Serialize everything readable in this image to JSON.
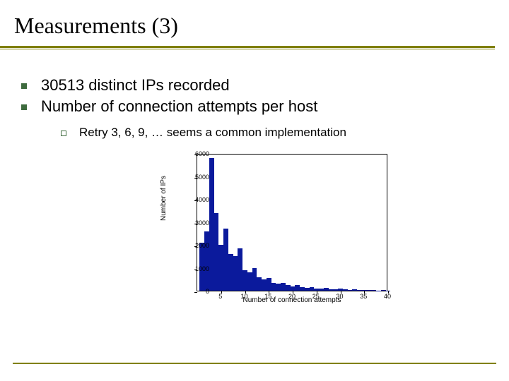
{
  "title": "Measurements (3)",
  "bullets": [
    "30513 distinct IPs recorded",
    "Number of connection attempts per host"
  ],
  "sub_bullet": "Retry 3, 6, 9, … seems a common implementation",
  "chart": {
    "type": "histogram",
    "xlabel": "Number of connection attempts",
    "ylabel": "Number of IPs",
    "xlim": [
      0,
      40
    ],
    "ylim": [
      0,
      6000
    ],
    "yticks": [
      0,
      1000,
      2000,
      3000,
      4000,
      5000,
      6000
    ],
    "xticks": [
      5,
      10,
      15,
      20,
      25,
      30,
      35,
      40
    ],
    "bar_color": "#0b1a9c",
    "background_color": "#ffffff",
    "axis_color": "#000000",
    "label_fontsize": 10,
    "tick_fontsize": 9,
    "bars": [
      {
        "x": 1,
        "y": 2100
      },
      {
        "x": 2,
        "y": 2600
      },
      {
        "x": 3,
        "y": 5800
      },
      {
        "x": 4,
        "y": 3400
      },
      {
        "x": 5,
        "y": 2000
      },
      {
        "x": 6,
        "y": 2700
      },
      {
        "x": 7,
        "y": 1600
      },
      {
        "x": 8,
        "y": 1500
      },
      {
        "x": 9,
        "y": 1850
      },
      {
        "x": 10,
        "y": 900
      },
      {
        "x": 11,
        "y": 800
      },
      {
        "x": 12,
        "y": 1000
      },
      {
        "x": 13,
        "y": 600
      },
      {
        "x": 14,
        "y": 500
      },
      {
        "x": 15,
        "y": 550
      },
      {
        "x": 16,
        "y": 350
      },
      {
        "x": 17,
        "y": 300
      },
      {
        "x": 18,
        "y": 350
      },
      {
        "x": 19,
        "y": 250
      },
      {
        "x": 20,
        "y": 200
      },
      {
        "x": 21,
        "y": 250
      },
      {
        "x": 22,
        "y": 150
      },
      {
        "x": 23,
        "y": 120
      },
      {
        "x": 24,
        "y": 150
      },
      {
        "x": 25,
        "y": 100
      },
      {
        "x": 26,
        "y": 90
      },
      {
        "x": 27,
        "y": 110
      },
      {
        "x": 28,
        "y": 70
      },
      {
        "x": 29,
        "y": 60
      },
      {
        "x": 30,
        "y": 80
      },
      {
        "x": 31,
        "y": 50
      },
      {
        "x": 32,
        "y": 40
      },
      {
        "x": 33,
        "y": 50
      },
      {
        "x": 34,
        "y": 30
      },
      {
        "x": 35,
        "y": 25
      },
      {
        "x": 36,
        "y": 30
      },
      {
        "x": 37,
        "y": 20
      },
      {
        "x": 38,
        "y": 15
      },
      {
        "x": 39,
        "y": 20
      },
      {
        "x": 40,
        "y": 10
      }
    ]
  }
}
